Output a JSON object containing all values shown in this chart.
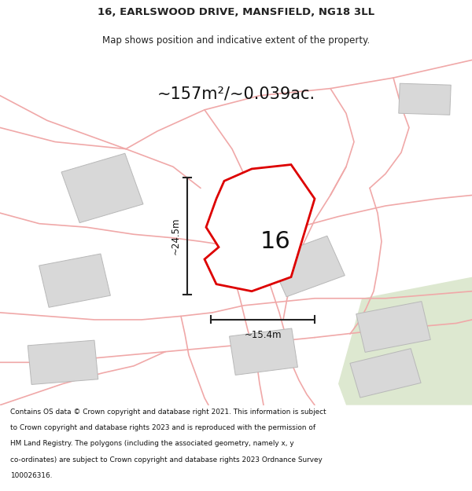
{
  "title_line1": "16, EARLSWOOD DRIVE, MANSFIELD, NG18 3LL",
  "title_line2": "Map shows position and indicative extent of the property.",
  "area_label": "~157m²/~0.039ac.",
  "width_label": "~15.4m",
  "height_label": "~24.5m",
  "number_label": "16",
  "footer_lines": [
    "Contains OS data © Crown copyright and database right 2021. This information is subject",
    "to Crown copyright and database rights 2023 and is reproduced with the permission of",
    "HM Land Registry. The polygons (including the associated geometry, namely x, y",
    "co-ordinates) are subject to Crown copyright and database rights 2023 Ordnance Survey",
    "100026316."
  ],
  "bg_color": "#ffffff",
  "property_fill": "#ffffff",
  "property_edge": "#dd0000",
  "neighbor_fill": "#d8d8d8",
  "neighbor_edge": "#b8b8b8",
  "road_color": "#f0a8a8",
  "green_color": "#dde8d0"
}
